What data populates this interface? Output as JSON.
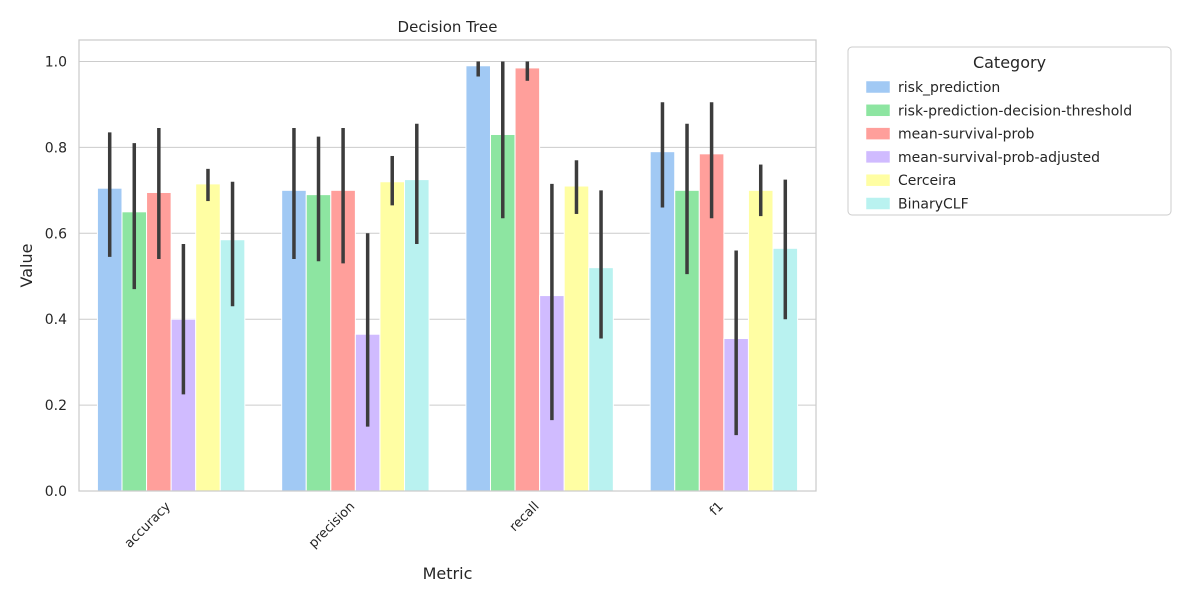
{
  "chart_data": {
    "type": "bar",
    "title": "Decision Tree",
    "xlabel": "Metric",
    "ylabel": "Value",
    "ylim": [
      0,
      1.05
    ],
    "yticks": [
      0.0,
      0.2,
      0.4,
      0.6,
      0.8,
      1.0
    ],
    "ytick_labels": [
      "0.0",
      "0.2",
      "0.4",
      "0.6",
      "0.8",
      "1.0"
    ],
    "grid": true,
    "categories": [
      "accuracy",
      "precision",
      "recall",
      "f1"
    ],
    "legend": {
      "title": "Category",
      "placement": "outside-top-right"
    },
    "series": [
      {
        "name": "risk_prediction",
        "color": "#a1c9f4",
        "values": [
          0.705,
          0.7,
          0.99,
          0.79
        ],
        "ci": [
          [
            0.545,
            0.835
          ],
          [
            0.54,
            0.845
          ],
          [
            0.965,
            1.0
          ],
          [
            0.66,
            0.905
          ]
        ]
      },
      {
        "name": "risk-prediction-decision-threshold",
        "color": "#8de5a1",
        "values": [
          0.65,
          0.69,
          0.83,
          0.7
        ],
        "ci": [
          [
            0.47,
            0.81
          ],
          [
            0.535,
            0.825
          ],
          [
            0.635,
            1.0
          ],
          [
            0.505,
            0.855
          ]
        ]
      },
      {
        "name": "mean-survival-prob",
        "color": "#ff9f9b",
        "values": [
          0.695,
          0.7,
          0.985,
          0.785
        ],
        "ci": [
          [
            0.54,
            0.845
          ],
          [
            0.53,
            0.845
          ],
          [
            0.955,
            1.0
          ],
          [
            0.635,
            0.905
          ]
        ]
      },
      {
        "name": "mean-survival-prob-adjusted",
        "color": "#d0bbff",
        "values": [
          0.4,
          0.365,
          0.455,
          0.355
        ],
        "ci": [
          [
            0.225,
            0.575
          ],
          [
            0.15,
            0.6
          ],
          [
            0.165,
            0.715
          ],
          [
            0.13,
            0.56
          ]
        ]
      },
      {
        "name": "Cerceira",
        "color": "#fffea3",
        "values": [
          0.715,
          0.72,
          0.71,
          0.7
        ],
        "ci": [
          [
            0.675,
            0.75
          ],
          [
            0.665,
            0.78
          ],
          [
            0.645,
            0.77
          ],
          [
            0.64,
            0.76
          ]
        ]
      },
      {
        "name": "BinaryCLF",
        "color": "#b9f2f0",
        "values": [
          0.585,
          0.725,
          0.52,
          0.565
        ],
        "ci": [
          [
            0.43,
            0.72
          ],
          [
            0.575,
            0.855
          ],
          [
            0.355,
            0.7
          ],
          [
            0.4,
            0.725
          ]
        ]
      }
    ]
  }
}
